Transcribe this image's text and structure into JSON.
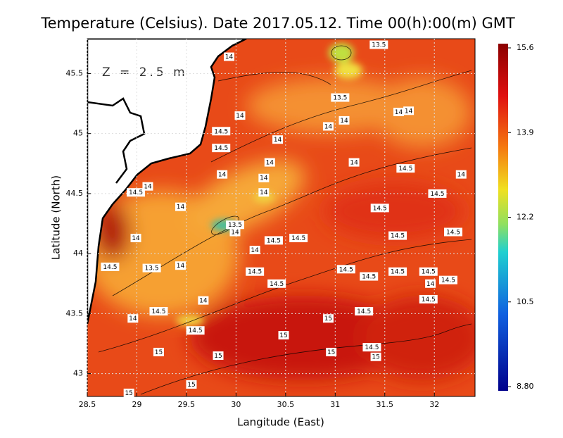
{
  "title": "Temperature (Celsius). Date 2017.05.12. Time 00(h):00(m) GMT",
  "annotation": "Z = 2.5 m",
  "x_label": "Langitude (East)",
  "y_label": "Latitude (North)",
  "map": {
    "xlim": [
      28.5,
      32.41
    ],
    "ylim": [
      42.81,
      45.79
    ],
    "xticks": [
      28.5,
      29,
      29.5,
      30,
      30.5,
      31,
      31.5,
      32
    ],
    "yticks": [
      43,
      43.5,
      44,
      44.5,
      45,
      45.5
    ]
  },
  "colorbar": {
    "lim": [
      8.8,
      15.6
    ],
    "ticks": [
      15.6,
      13.9,
      12.2,
      10.5,
      {
        "value": 8.8,
        "label": "8.80"
      }
    ]
  },
  "contour_labels": [
    {
      "value": 13.5,
      "lon": 31.44,
      "lat": 45.74
    },
    {
      "value": 14,
      "lon": 29.93,
      "lat": 45.64
    },
    {
      "value": 13.5,
      "lon": 31.05,
      "lat": 45.3
    },
    {
      "value": 14,
      "lon": 31.09,
      "lat": 45.11
    },
    {
      "value": 14,
      "lon": 30.93,
      "lat": 45.06
    },
    {
      "value": 14,
      "lon": 31.64,
      "lat": 45.18
    },
    {
      "value": 14,
      "lon": 31.74,
      "lat": 45.19
    },
    {
      "value": 14,
      "lon": 30.04,
      "lat": 45.15
    },
    {
      "value": 14.5,
      "lon": 29.85,
      "lat": 45.02
    },
    {
      "value": 14.5,
      "lon": 29.85,
      "lat": 44.88
    },
    {
      "value": 14,
      "lon": 30.42,
      "lat": 44.95
    },
    {
      "value": 14,
      "lon": 30.34,
      "lat": 44.76
    },
    {
      "value": 14,
      "lon": 31.19,
      "lat": 44.76
    },
    {
      "value": 14.5,
      "lon": 31.71,
      "lat": 44.71
    },
    {
      "value": 14,
      "lon": 32.27,
      "lat": 44.66
    },
    {
      "value": 14,
      "lon": 29.86,
      "lat": 44.66
    },
    {
      "value": 14,
      "lon": 30.28,
      "lat": 44.63
    },
    {
      "value": 14,
      "lon": 29.11,
      "lat": 44.56
    },
    {
      "value": 14.5,
      "lon": 28.99,
      "lat": 44.51
    },
    {
      "value": 14,
      "lon": 30.28,
      "lat": 44.51
    },
    {
      "value": 14.5,
      "lon": 32.03,
      "lat": 44.5
    },
    {
      "value": 14,
      "lon": 29.44,
      "lat": 44.39
    },
    {
      "value": 14.5,
      "lon": 31.45,
      "lat": 44.38
    },
    {
      "value": 13.5,
      "lon": 29.99,
      "lat": 44.24
    },
    {
      "value": 14,
      "lon": 29.99,
      "lat": 44.18
    },
    {
      "value": 14,
      "lon": 28.99,
      "lat": 44.13
    },
    {
      "value": 14.5,
      "lon": 30.63,
      "lat": 44.13
    },
    {
      "value": 14.5,
      "lon": 30.38,
      "lat": 44.11
    },
    {
      "value": 14.5,
      "lon": 31.63,
      "lat": 44.15
    },
    {
      "value": 14.5,
      "lon": 32.19,
      "lat": 44.18
    },
    {
      "value": 14,
      "lon": 30.19,
      "lat": 44.03
    },
    {
      "value": 14.5,
      "lon": 28.73,
      "lat": 43.89
    },
    {
      "value": 13.5,
      "lon": 29.15,
      "lat": 43.88
    },
    {
      "value": 14,
      "lon": 29.44,
      "lat": 43.9
    },
    {
      "value": 14.5,
      "lon": 30.19,
      "lat": 43.85
    },
    {
      "value": 14.5,
      "lon": 31.11,
      "lat": 43.87
    },
    {
      "value": 14.5,
      "lon": 31.34,
      "lat": 43.81
    },
    {
      "value": 14.5,
      "lon": 31.63,
      "lat": 43.85
    },
    {
      "value": 14.5,
      "lon": 31.94,
      "lat": 43.85
    },
    {
      "value": 14.5,
      "lon": 30.41,
      "lat": 43.75
    },
    {
      "value": 14.5,
      "lon": 32.14,
      "lat": 43.78
    },
    {
      "value": 14,
      "lon": 31.96,
      "lat": 43.75
    },
    {
      "value": 14.5,
      "lon": 31.94,
      "lat": 43.62
    },
    {
      "value": 14,
      "lon": 29.67,
      "lat": 43.61
    },
    {
      "value": 14.5,
      "lon": 29.22,
      "lat": 43.52
    },
    {
      "value": 14.5,
      "lon": 31.29,
      "lat": 43.52
    },
    {
      "value": 14,
      "lon": 28.96,
      "lat": 43.46
    },
    {
      "value": 15,
      "lon": 30.93,
      "lat": 43.46
    },
    {
      "value": 14.5,
      "lon": 29.59,
      "lat": 43.36
    },
    {
      "value": 15,
      "lon": 30.48,
      "lat": 43.32
    },
    {
      "value": 14.5,
      "lon": 31.37,
      "lat": 43.22
    },
    {
      "value": 15,
      "lon": 29.22,
      "lat": 43.18
    },
    {
      "value": 15,
      "lon": 29.82,
      "lat": 43.15
    },
    {
      "value": 15,
      "lon": 30.96,
      "lat": 43.18
    },
    {
      "value": 15,
      "lon": 31.41,
      "lat": 43.14
    },
    {
      "value": 15,
      "lon": 29.55,
      "lat": 42.91
    },
    {
      "value": 15,
      "lon": 28.92,
      "lat": 42.84
    }
  ]
}
